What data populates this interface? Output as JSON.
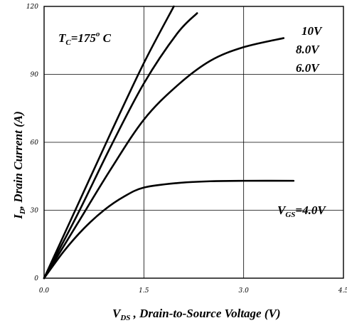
{
  "chart_data": {
    "type": "line",
    "xlabel_prefix": "V",
    "xlabel_sub": "DS",
    "xlabel_rest": " , Drain-to-Source Voltage (V)",
    "ylabel_prefix": "I",
    "ylabel_sub": "D",
    "ylabel_rest": ", Drain Current (A)",
    "xlim": [
      0,
      4.5
    ],
    "ylim": [
      0,
      120
    ],
    "x_ticks": [
      "0.0",
      "1.5",
      "3.0",
      "4.5"
    ],
    "x_tick_values": [
      0,
      1.5,
      3.0,
      4.5
    ],
    "y_ticks": [
      "0",
      "30",
      "60",
      "90",
      "120"
    ],
    "y_tick_values": [
      0,
      30,
      60,
      90,
      120
    ],
    "grid": true,
    "annotations": {
      "temperature_main": "T",
      "temperature_sub": "C",
      "temperature_rest": "=175",
      "temperature_deg": "o",
      "temperature_unit": " C",
      "vgs_main": "V",
      "vgs_sub": "GS",
      "vgs_rest": "=4.0V"
    },
    "series": [
      {
        "name": "10V",
        "x": [
          0,
          0.5,
          1.0,
          1.5,
          1.95
        ],
        "y": [
          0,
          32,
          64,
          95,
          120
        ]
      },
      {
        "name": "8.0V",
        "x": [
          0,
          0.5,
          1.0,
          1.5,
          2.0,
          2.3
        ],
        "y": [
          0,
          28,
          58,
          86,
          108,
          117
        ]
      },
      {
        "name": "6.0V",
        "x": [
          0,
          0.5,
          1.0,
          1.5,
          2.0,
          2.5,
          3.0,
          3.6
        ],
        "y": [
          0,
          24,
          48,
          70,
          85,
          96,
          102,
          106
        ]
      },
      {
        "name": "",
        "x": [
          0,
          0.3,
          0.6,
          0.9,
          1.2,
          1.5,
          2.0,
          2.5,
          3.0,
          3.75
        ],
        "y": [
          0,
          12,
          22,
          30,
          36,
          40,
          42,
          42.8,
          43,
          43
        ]
      }
    ],
    "legend_labels": [
      "10V",
      "8.0V",
      "6.0V"
    ]
  }
}
